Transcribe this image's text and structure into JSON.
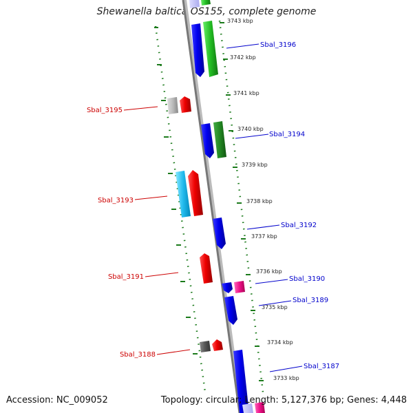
{
  "title": "Shewanella baltica OS155, complete genome",
  "footer": {
    "accession": "Accession: NC_009052",
    "summary": "Topology: circular; Length: 5,127,376 bp; Genes: 4,448"
  },
  "colors": {
    "backbone": "#888888",
    "tick": "#1a7a1a",
    "forward_label": "#0000cc",
    "reverse_label": "#cc0000"
  },
  "kbp_labels": [
    "3743 kbp",
    "3742 kbp",
    "3741 kbp",
    "3740 kbp",
    "3739 kbp",
    "3738 kbp",
    "3737 kbp",
    "3736 kbp",
    "3735 kbp",
    "3734 kbp",
    "3733 kbp"
  ],
  "gene_labels": [
    {
      "text": "Sbal_3196",
      "strand": "forward"
    },
    {
      "text": "Sbal_3195",
      "strand": "reverse"
    },
    {
      "text": "Sbal_3194",
      "strand": "forward"
    },
    {
      "text": "Sbal_3193",
      "strand": "reverse"
    },
    {
      "text": "Sbal_3192",
      "strand": "forward"
    },
    {
      "text": "Sbal_3191",
      "strand": "reverse"
    },
    {
      "text": "Sbal_3190",
      "strand": "forward"
    },
    {
      "text": "Sbal_3189",
      "strand": "forward"
    },
    {
      "text": "Sbal_3188",
      "strand": "reverse"
    },
    {
      "text": "Sbal_3187",
      "strand": "forward"
    }
  ]
}
